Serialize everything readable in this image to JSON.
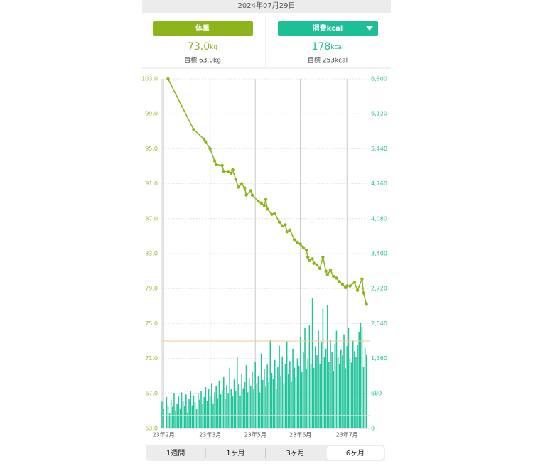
{
  "header": {
    "date": "2024年07月29日"
  },
  "panels": [
    {
      "label": "体重",
      "value": "73.0",
      "unit": "kg",
      "goal": "目標 63.0kg"
    },
    {
      "label": "消費kcal",
      "value": "178",
      "unit": "kcal",
      "goal": "目標 253kcal"
    }
  ],
  "chart_data": {
    "type": "combo",
    "xlim": [
      0,
      138
    ],
    "xticks": [
      {
        "value": 1,
        "label": "23年2月"
      },
      {
        "value": 32,
        "label": "23年3月"
      },
      {
        "value": 62,
        "label": "23年5月"
      },
      {
        "value": 92,
        "label": "23年6月"
      },
      {
        "value": 123,
        "label": "23年7月"
      }
    ],
    "ylim": [
      63,
      103
    ],
    "yticks": [
      {
        "value": 63,
        "label": "63.0"
      },
      {
        "value": 67,
        "label": "67.0"
      },
      {
        "value": 71,
        "label": "71.0"
      },
      {
        "value": 75,
        "label": "75.0"
      },
      {
        "value": 79,
        "label": "79.0"
      },
      {
        "value": 83,
        "label": "83.0"
      },
      {
        "value": 87,
        "label": "87.0"
      },
      {
        "value": 91,
        "label": "91.0"
      },
      {
        "value": 95,
        "label": "95.0"
      },
      {
        "value": 99,
        "label": "99.0"
      },
      {
        "value": 103,
        "label": "103.0"
      }
    ],
    "y2lim": [
      0,
      6800
    ],
    "y2ticks": [
      0,
      680,
      {
        "value": 1360,
        "label": "1,360"
      },
      {
        "value": 2040,
        "label": "2,040"
      },
      {
        "value": 2720,
        "label": "2,720"
      },
      {
        "value": 3400,
        "label": "3,400"
      },
      {
        "value": 4080,
        "label": "4,080"
      },
      {
        "value": 4760,
        "label": "4,760"
      },
      {
        "value": 5440,
        "label": "5,440"
      },
      {
        "value": 6120,
        "label": "6,120"
      },
      {
        "value": 6800,
        "label": "6,800"
      }
    ],
    "grid": true,
    "ref_lines": [
      {
        "axis": "y",
        "value": 73,
        "color": "#f0c89a"
      },
      {
        "axis": "y2",
        "value": 253,
        "color": "#cfe8de"
      }
    ],
    "series": [
      {
        "type": "bar",
        "axis": "y2",
        "color": "#22c49a",
        "x": [
          0,
          1,
          2,
          3,
          4,
          5,
          6,
          7,
          8,
          9,
          10,
          11,
          12,
          13,
          14,
          15,
          16,
          17,
          18,
          19,
          20,
          21,
          22,
          23,
          24,
          25,
          26,
          27,
          28,
          29,
          30,
          31,
          32,
          33,
          34,
          35,
          36,
          37,
          38,
          39,
          40,
          41,
          42,
          43,
          44,
          45,
          46,
          47,
          48,
          49,
          50,
          51,
          52,
          53,
          54,
          55,
          56,
          57,
          58,
          59,
          60,
          61,
          62,
          63,
          64,
          65,
          66,
          67,
          68,
          69,
          70,
          71,
          72,
          73,
          74,
          75,
          76,
          77,
          78,
          79,
          80,
          81,
          82,
          83,
          84,
          85,
          86,
          87,
          88,
          89,
          90,
          91,
          92,
          93,
          94,
          95,
          96,
          97,
          98,
          99,
          100,
          101,
          102,
          103,
          104,
          105,
          106,
          107,
          108,
          109,
          110,
          111,
          112,
          113,
          114,
          115,
          116,
          117,
          118,
          119,
          120,
          121,
          122,
          123,
          124,
          125,
          126,
          127,
          128,
          129,
          130,
          131,
          132,
          133,
          134,
          135,
          136
        ],
        "values": [
          520,
          380,
          0,
          610,
          450,
          300,
          560,
          420,
          690,
          350,
          480,
          620,
          390,
          700,
          530,
          440,
          660,
          310,
          580,
          720,
          450,
          640,
          510,
          380,
          690,
          560,
          720,
          470,
          610,
          800,
          540,
          760,
          620,
          880,
          490,
          700,
          820,
          590,
          930,
          660,
          750,
          1010,
          580,
          840,
          690,
          1180,
          770,
          620,
          950,
          720,
          1380,
          860,
          640,
          1050,
          780,
          900,
          1230,
          700,
          980,
          820,
          1100,
          760,
          1290,
          880,
          1020,
          700,
          1460,
          940,
          1150,
          810,
          1240,
          900,
          1720,
          1080,
          960,
          1330,
          770,
          1190,
          1610,
          1020,
          1400,
          880,
          1250,
          1690,
          1060,
          1310,
          920,
          1550,
          1180,
          1010,
          1360,
          1220,
          1780,
          1090,
          1480,
          1950,
          1160,
          1340,
          2000,
          1250,
          2530,
          1180,
          1600,
          1420,
          1900,
          1260,
          1680,
          2330,
          1390,
          1550,
          2400,
          1300,
          1720,
          1480,
          1120,
          1650,
          1900,
          1380,
          1260,
          1540,
          1420,
          1830,
          1170,
          1600,
          1950,
          1340,
          1280,
          1710,
          1500,
          1390,
          1620,
          1870,
          2060,
          1980,
          1200,
          1560,
          1440
        ]
      },
      {
        "type": "line",
        "axis": "y",
        "color": "#8db41c",
        "x": [
          4,
          21,
          28,
          29,
          32,
          35,
          36,
          40,
          41,
          44,
          46,
          47,
          49,
          51,
          53,
          55,
          56,
          59,
          60,
          64,
          66,
          68,
          69,
          70,
          73,
          75,
          78,
          80,
          82,
          83,
          85,
          88,
          90,
          92,
          94,
          96,
          97,
          98,
          100,
          101,
          103,
          105,
          107,
          109,
          110,
          112,
          114,
          116,
          118,
          120,
          122,
          123,
          125,
          128,
          130,
          133,
          134,
          136
        ],
        "values": [
          103.0,
          97.2,
          96.1,
          95.8,
          95.0,
          93.6,
          93.2,
          93.1,
          92.4,
          92.4,
          92.2,
          92.6,
          91.5,
          90.6,
          91.0,
          90.5,
          89.7,
          90.2,
          89.7,
          89.0,
          88.8,
          88.5,
          89.2,
          88.1,
          87.5,
          87.6,
          86.6,
          86.2,
          86.3,
          85.5,
          85.7,
          84.6,
          84.3,
          84.1,
          83.7,
          83.4,
          82.6,
          82.2,
          82.4,
          81.9,
          81.7,
          81.3,
          82.6,
          81.0,
          80.6,
          81.1,
          80.4,
          80.2,
          79.8,
          79.5,
          79.1,
          79.3,
          79.3,
          79.7,
          78.8,
          80.1,
          78.5,
          77.2
        ]
      }
    ]
  },
  "tabs": [
    "1週間",
    "1ヶ月",
    "3ヶ月",
    "6ヶ月"
  ],
  "selected_tab": 3
}
